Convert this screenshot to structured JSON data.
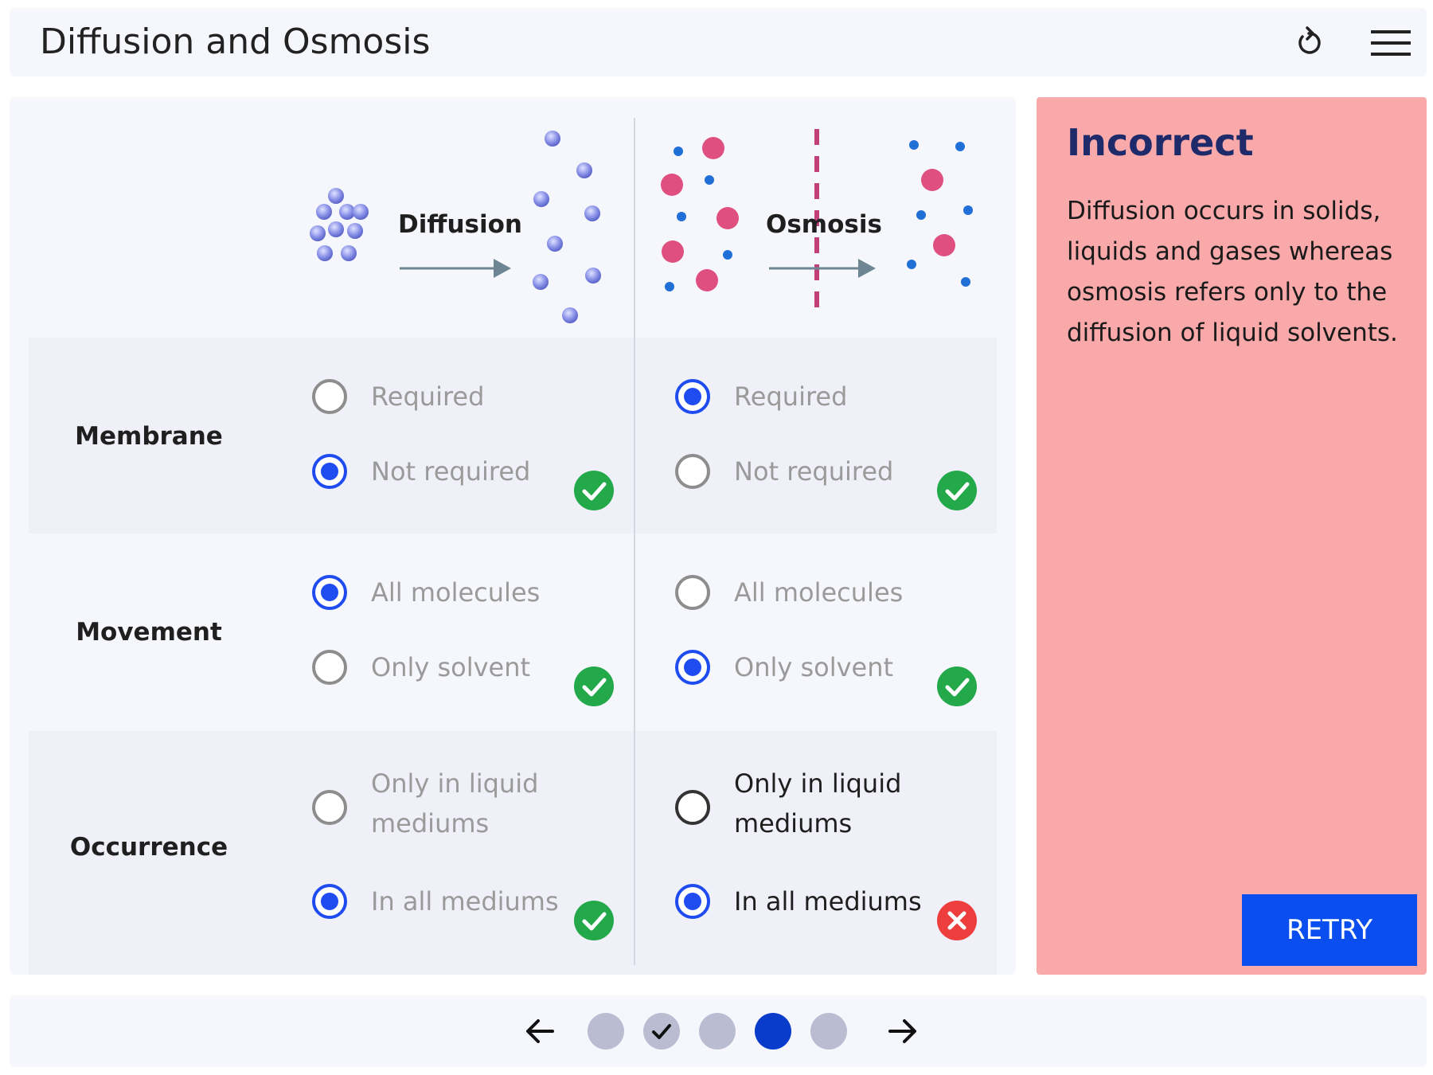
{
  "header": {
    "title": "Diffusion and Osmosis"
  },
  "diagram": {
    "diffusion_label": "Diffusion",
    "osmosis_label": "Osmosis"
  },
  "rows": [
    {
      "label": "Membrane",
      "diffusion": {
        "options": [
          "Required",
          "Not required"
        ],
        "selected": 1,
        "result": "correct"
      },
      "osmosis": {
        "options": [
          "Required",
          "Not required"
        ],
        "selected": 0,
        "result": "correct"
      }
    },
    {
      "label": "Movement",
      "diffusion": {
        "options": [
          "All molecules",
          "Only solvent"
        ],
        "selected": 0,
        "result": "correct"
      },
      "osmosis": {
        "options": [
          "All molecules",
          "Only solvent"
        ],
        "selected": 1,
        "result": "correct"
      }
    },
    {
      "label": "Occurrence",
      "diffusion": {
        "options": [
          "Only in liquid mediums",
          "In all mediums"
        ],
        "selected": 1,
        "result": "correct"
      },
      "osmosis": {
        "options": [
          "Only in liquid mediums",
          "In all mediums"
        ],
        "selected": 1,
        "result": "incorrect"
      }
    }
  ],
  "feedback": {
    "title": "Incorrect",
    "body": "Diffusion occurs in solids, liquids and gases whereas osmosis refers only to the diffusion of liquid solvents.",
    "retry_label": "RETRY"
  },
  "pagination": {
    "steps": [
      {
        "state": "default"
      },
      {
        "state": "completed"
      },
      {
        "state": "default"
      },
      {
        "state": "current"
      },
      {
        "state": "default"
      }
    ]
  },
  "colors": {
    "selected": "#1f4cf0",
    "correct": "#23a84a",
    "incorrect": "#ee3d3d",
    "feedback_bg": "#faa9aa",
    "accent": "#0a4ef0"
  },
  "icons": {
    "reset": "reset-icon",
    "menu": "hamburger-menu-icon",
    "correct": "check-circle-icon",
    "incorrect": "x-circle-icon",
    "prev": "arrow-left-icon",
    "next": "arrow-right-icon"
  }
}
